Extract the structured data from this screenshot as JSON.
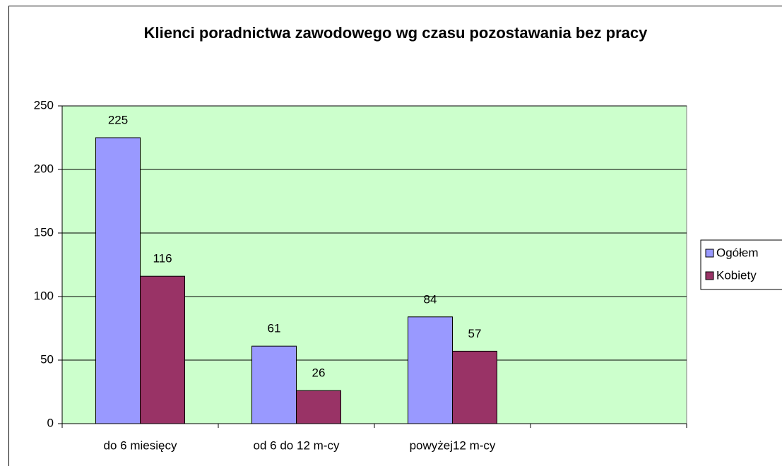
{
  "chart_data": {
    "type": "bar",
    "title": "Klienci poradnictwa zawodowego wg czasu pozostawania bez pracy",
    "categories": [
      "do 6 miesięcy",
      "od 6 do 12 m-cy",
      "powyżej12 m-cy",
      null
    ],
    "series": [
      {
        "name": "Ogółem",
        "color": "#9999ff",
        "values": [
          225,
          61,
          84,
          null
        ]
      },
      {
        "name": "Kobiety",
        "color": "#993366",
        "values": [
          116,
          26,
          57,
          null
        ]
      }
    ],
    "ylim": [
      0,
      250
    ],
    "yticks": [
      0,
      50,
      100,
      150,
      200,
      250
    ],
    "grid": true,
    "plot_background": "#ccffcc",
    "legend": "right",
    "data_labels": true
  }
}
